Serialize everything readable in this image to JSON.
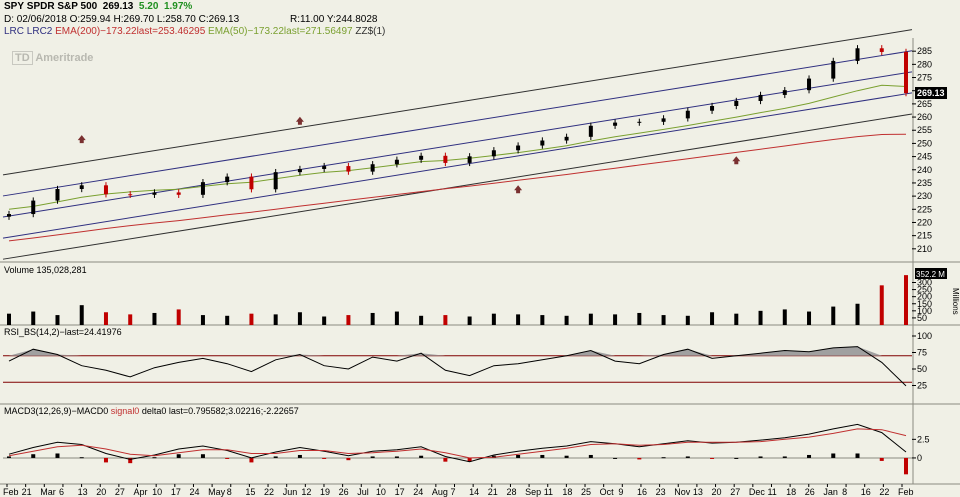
{
  "header": {
    "symbol": "SPY",
    "name": "SPDR S&P 500",
    "price": "269.13",
    "change": "5.20",
    "change_pct": "1.97%",
    "ohlc_line": "D: 02/06/2018  O:259.94  H:269.70  L:258.70  C:269.13",
    "r_line": "R:11.00  Y:244.8028",
    "study_lrc": "LRC LRC2",
    "study_ema200": "EMA(200)−173.22last=253.46295",
    "study_ema50": "EMA(50)−173.22last=271.56497",
    "study_zz": "ZZ$(1)"
  },
  "logo": {
    "text": "Ameritrade",
    "mark": "TD"
  },
  "colors": {
    "background": "#f0f0e6",
    "up": "#000000",
    "down": "#c00000",
    "ema200": "#c03030",
    "ema50": "#7aa030",
    "lrc": "#303080",
    "lrc_outer": "#303030",
    "arrow": "#7a3030",
    "price_box": "#000000",
    "volume_box": "#000000",
    "rsi_fill": "#a0a0a0",
    "rsi_line": "#800000"
  },
  "chart_data": [
    {
      "type": "candlestick",
      "panel": "price",
      "price_last": "269.13",
      "ylim": [
        205,
        290
      ],
      "y_ticks": [
        210,
        215,
        220,
        225,
        230,
        235,
        240,
        245,
        250,
        255,
        260,
        265,
        270,
        275,
        280,
        285
      ],
      "close_series": [
        223.2,
        228.3,
        232.7,
        234.1,
        230.7,
        230.5,
        231.4,
        230.5,
        235.3,
        237.4,
        232.6,
        239.1,
        240.3,
        241.4,
        239.3,
        242.1,
        243.8,
        245.3,
        242.6,
        245.1,
        247.4,
        249.2,
        251.1,
        252.5,
        256.7,
        257.9,
        258.2,
        259.5,
        262.4,
        264.2,
        266.1,
        268.4,
        270.2,
        274.6,
        281.3,
        286.1,
        284.7,
        269.1
      ],
      "ema50_series": [
        225.0,
        226.1,
        227.8,
        229.6,
        230.8,
        231.6,
        232.2,
        232.6,
        233.7,
        234.7,
        235.3,
        236.6,
        237.9,
        239.0,
        239.7,
        240.8,
        241.9,
        243.1,
        243.5,
        244.4,
        245.4,
        246.5,
        247.8,
        249.1,
        250.9,
        252.5,
        253.9,
        255.3,
        256.8,
        258.4,
        260.0,
        261.7,
        263.3,
        265.2,
        267.6,
        270.0,
        272.1,
        271.6
      ],
      "ema200_series": [
        213.0,
        214.1,
        215.3,
        216.5,
        217.7,
        218.8,
        219.8,
        220.7,
        221.8,
        222.9,
        223.9,
        225.0,
        226.2,
        227.3,
        228.4,
        229.5,
        230.6,
        231.7,
        232.8,
        233.8,
        234.9,
        236.0,
        237.1,
        238.2,
        239.4,
        240.6,
        241.8,
        243.0,
        244.2,
        245.4,
        246.6,
        247.8,
        249.0,
        250.3,
        251.5,
        252.6,
        253.4,
        253.5
      ],
      "markers": [
        {
          "label": "up-arrow",
          "x_index": 3,
          "price": 252
        },
        {
          "label": "up-arrow",
          "x_index": 12,
          "price": 259
        },
        {
          "label": "up-arrow",
          "x_index": 21,
          "price": 233
        },
        {
          "label": "up-arrow",
          "x_index": 30,
          "price": 244
        }
      ]
    },
    {
      "type": "bar",
      "panel": "volume",
      "title": "Volume 135,028,281",
      "volume_last": "352.2 M",
      "unit_label": "Millions",
      "ylim": [
        0,
        360
      ],
      "y_ticks": [
        50,
        100,
        150,
        200,
        250,
        300
      ],
      "values": [
        80,
        95,
        70,
        140,
        90,
        75,
        85,
        110,
        70,
        65,
        80,
        75,
        90,
        60,
        70,
        85,
        95,
        65,
        70,
        60,
        80,
        75,
        70,
        65,
        80,
        75,
        85,
        70,
        65,
        90,
        80,
        100,
        110,
        95,
        130,
        150,
        280,
        352
      ]
    },
    {
      "type": "line",
      "panel": "rsi",
      "title": "RSI_BS(14,2)−last=24.41976",
      "ylim": [
        0,
        100
      ],
      "y_ticks": [
        25,
        50,
        75,
        100
      ],
      "bands": [
        70,
        30
      ],
      "values": [
        62,
        80,
        72,
        55,
        48,
        38,
        52,
        60,
        66,
        58,
        46,
        64,
        72,
        55,
        50,
        68,
        62,
        74,
        48,
        40,
        55,
        58,
        64,
        70,
        78,
        62,
        58,
        72,
        80,
        66,
        70,
        74,
        78,
        76,
        82,
        84,
        60,
        24.4
      ]
    },
    {
      "type": "line",
      "panel": "macd",
      "title": "MACD3(12,26,9)−MACD0",
      "legend_signal": "signal0",
      "legend_delta": "delta0",
      "legend_last": "last=0.795582;3.02216;-2.22657",
      "ylim": [
        -3.5,
        5.5
      ],
      "y_ticks": [
        "2.5",
        "0"
      ],
      "macd": [
        0.5,
        1.4,
        2.1,
        1.8,
        0.6,
        -0.2,
        0.4,
        1.2,
        1.6,
        1.0,
        0.0,
        0.8,
        1.4,
        0.9,
        0.3,
        0.9,
        1.1,
        1.5,
        0.2,
        -0.5,
        0.4,
        0.9,
        1.3,
        1.6,
        2.2,
        1.9,
        1.5,
        1.9,
        2.3,
        2.0,
        2.1,
        2.4,
        2.7,
        3.2,
        3.9,
        4.5,
        3.4,
        0.8
      ],
      "signal": [
        0.3,
        0.9,
        1.5,
        1.7,
        1.2,
        0.5,
        0.3,
        0.7,
        1.1,
        1.1,
        0.6,
        0.6,
        1.0,
        1.0,
        0.6,
        0.7,
        0.9,
        1.2,
        0.7,
        0.0,
        0.1,
        0.5,
        0.9,
        1.3,
        1.8,
        1.9,
        1.7,
        1.8,
        2.1,
        2.1,
        2.1,
        2.2,
        2.5,
        2.8,
        3.3,
        3.9,
        3.8,
        3.0
      ]
    }
  ],
  "x_axis_labels": [
    "Feb",
    "21",
    "Mar",
    "6",
    "13",
    "20",
    "27",
    "Apr",
    "10",
    "17",
    "24",
    "May",
    "8",
    "15",
    "22",
    "Jun",
    "12",
    "19",
    "26",
    "Jul",
    "10",
    "17",
    "24",
    "Aug",
    "7",
    "14",
    "21",
    "28",
    "Sep",
    "11",
    "18",
    "25",
    "Oct",
    "9",
    "16",
    "23",
    "Nov",
    "13",
    "20",
    "27",
    "Dec",
    "11",
    "18",
    "26",
    "Jan",
    "8",
    "16",
    "22",
    "Feb"
  ]
}
